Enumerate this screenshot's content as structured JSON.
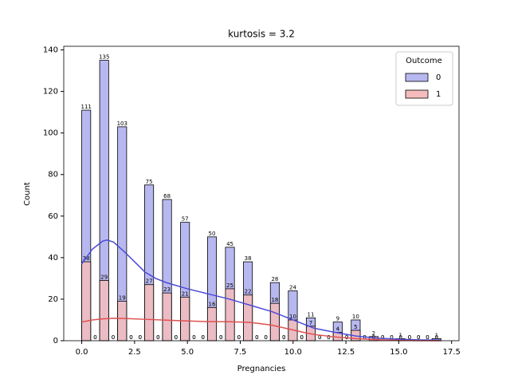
{
  "chart_data": {
    "type": "histogram",
    "title": "kurtosis = 3.2",
    "x_label": "Pregnancies",
    "y_label": "Count",
    "bins": [
      0,
      0.425,
      0.85,
      1.275,
      1.7,
      2.125,
      2.55,
      2.975,
      3.4,
      3.825,
      4.25,
      4.675,
      5.1,
      5.525,
      5.95,
      6.375,
      6.8,
      7.225,
      7.65,
      8.075,
      8.5,
      8.925,
      9.35,
      9.775,
      10.2,
      10.625,
      11.05,
      11.475,
      11.9,
      12.325,
      12.75,
      13.175,
      13.6,
      14.025,
      14.45,
      14.875,
      15.3,
      15.725,
      16.15,
      16.575,
      17
    ],
    "series": [
      {
        "name": "0",
        "color": "#b8b8f0",
        "line_color": "#4b4bd9",
        "values": [
          111,
          0,
          135,
          0,
          103,
          0,
          0,
          75,
          0,
          68,
          0,
          57,
          0,
          0,
          50,
          0,
          45,
          0,
          38,
          0,
          0,
          28,
          0,
          24,
          0,
          11,
          0,
          0,
          9,
          0,
          10,
          0,
          0,
          0,
          0,
          1,
          0,
          0,
          0,
          1
        ],
        "kde_x": [
          0,
          0.5,
          1,
          1.2,
          1.5,
          2,
          2.5,
          3,
          3.5,
          4,
          5,
          6,
          7,
          8,
          9,
          10,
          10.5,
          11,
          12,
          13,
          14,
          15,
          16,
          17
        ],
        "kde_y": [
          37,
          44,
          48,
          48.5,
          47.5,
          43,
          38,
          33,
          30,
          28,
          25,
          22.5,
          20,
          17,
          14,
          10,
          8,
          6,
          4,
          2.2,
          1.2,
          0.7,
          0.4,
          0.3
        ]
      },
      {
        "name": "1",
        "color": "#f4bcbc",
        "line_color": "#e05050",
        "values": [
          38,
          0,
          29,
          0,
          19,
          0,
          0,
          27,
          0,
          23,
          0,
          21,
          0,
          0,
          16,
          0,
          25,
          0,
          22,
          0,
          0,
          18,
          0,
          10,
          0,
          7,
          0,
          0,
          4,
          0,
          5,
          0,
          2,
          0,
          0,
          0,
          0,
          0,
          0,
          0
        ],
        "kde_x": [
          0,
          0.5,
          1,
          1.5,
          2,
          3,
          4,
          5,
          6,
          7,
          7.5,
          8,
          9,
          10,
          10.5,
          11,
          12,
          13,
          14,
          15,
          16,
          17
        ],
        "kde_y": [
          9,
          10,
          10.5,
          10.8,
          10.7,
          10.3,
          9.9,
          9.5,
          9.2,
          9.1,
          9,
          8.8,
          7.5,
          5.2,
          4,
          3,
          1.8,
          1,
          0.5,
          0.2,
          0.05,
          0
        ]
      }
    ],
    "legend_title": "Outcome",
    "legend": "upper right",
    "xlim": [
      -0.85,
      17.85
    ],
    "ylim": [
      0,
      141.75
    ],
    "xticks": [
      {
        "value": 0,
        "label": "0.0"
      },
      {
        "value": 2.5,
        "label": "2.5"
      },
      {
        "value": 5,
        "label": "5.0"
      },
      {
        "value": 7.5,
        "label": "7.5"
      },
      {
        "value": 10,
        "label": "10.0"
      },
      {
        "value": 12.5,
        "label": "12.5"
      },
      {
        "value": 15,
        "label": "15.0"
      },
      {
        "value": 17.5,
        "label": "17.5"
      }
    ],
    "yticks": [
      0,
      20,
      40,
      60,
      80,
      100,
      120,
      140
    ]
  }
}
